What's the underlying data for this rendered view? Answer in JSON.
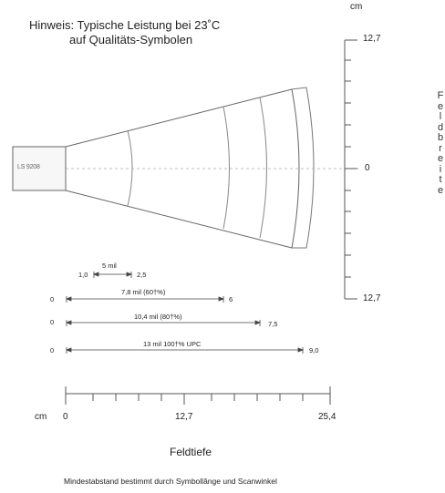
{
  "note": {
    "line1": "Hinweis: Typische Leistung bei 23˚C",
    "line2": "auf Qualitäts-Symbolen"
  },
  "scanner": {
    "label": "LS 9208"
  },
  "y_axis": {
    "unit": "cm",
    "top_label": "12,7",
    "center_label": "0",
    "bottom_label": "12,7",
    "title_letters": [
      "F",
      "e",
      "l",
      "d",
      "b",
      "r",
      "e",
      "i",
      "t",
      "e"
    ]
  },
  "x_axis": {
    "unit": "cm",
    "ticks": [
      {
        "value": 0,
        "label": "0"
      },
      {
        "value": 12.7,
        "label": "12,7"
      },
      {
        "value": 25.4,
        "label": "25,4"
      }
    ],
    "title": "Feldtiefe"
  },
  "ranges": [
    {
      "label": "5 mil",
      "start": 1.0,
      "end": 2.5,
      "start_label": "1,0",
      "end_label": "2,5"
    },
    {
      "label": "7,8 mil (60†%)",
      "start": 0,
      "end": 6,
      "start_label": "0",
      "end_label": "6"
    },
    {
      "label": "10,4 mil (80†%)",
      "start": 0,
      "end": 7.5,
      "start_label": "0",
      "end_label": "7,5"
    },
    {
      "label": "13 mil 100†% UPC",
      "start": 0,
      "end": 9.0,
      "start_label": "0",
      "end_label": "9,0"
    }
  ],
  "footer": "Mindestabstand bestimmt durch Symbollânge und Scanwinkel"
}
